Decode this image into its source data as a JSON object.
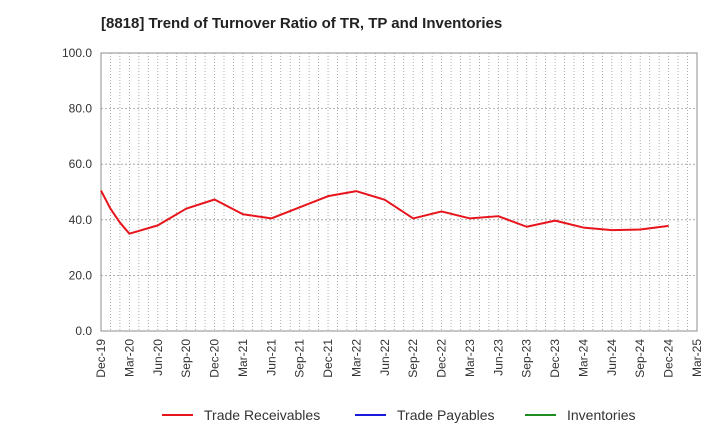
{
  "chart_data": {
    "type": "line",
    "title": "[8818]  Trend of Turnover Ratio of TR, TP and Inventories",
    "xlabel": "",
    "ylabel": "",
    "ylim": [
      0,
      100
    ],
    "yticks": [
      "0.0",
      "20.0",
      "40.0",
      "60.0",
      "80.0",
      "100.0"
    ],
    "xticks": [
      "Dec-19",
      "Mar-20",
      "Jun-20",
      "Sep-20",
      "Dec-20",
      "Mar-21",
      "Jun-21",
      "Sep-21",
      "Dec-21",
      "Mar-22",
      "Jun-22",
      "Sep-22",
      "Dec-22",
      "Mar-23",
      "Jun-23",
      "Sep-23",
      "Dec-23",
      "Mar-24",
      "Jun-24",
      "Sep-24",
      "Dec-24",
      "Mar-25"
    ],
    "grid": true,
    "legend_position": "bottom",
    "series": [
      {
        "name": "Trade Receivables",
        "color": "#e8141c",
        "values": [
          [
            0,
            50.5
          ],
          [
            1,
            44.0
          ],
          [
            2,
            39.0
          ],
          [
            3,
            35.0
          ],
          [
            6,
            38.0
          ],
          [
            9,
            44.0
          ],
          [
            12,
            47.3
          ],
          [
            15,
            42.0
          ],
          [
            18,
            40.5
          ],
          [
            21,
            44.5
          ],
          [
            24,
            48.5
          ],
          [
            27,
            50.3
          ],
          [
            30,
            47.2
          ],
          [
            33,
            40.5
          ],
          [
            36,
            43.0
          ],
          [
            39,
            40.5
          ],
          [
            42,
            41.3
          ],
          [
            45,
            37.5
          ],
          [
            48,
            39.7
          ],
          [
            51,
            37.2
          ],
          [
            54,
            36.3
          ],
          [
            57,
            36.5
          ],
          [
            60,
            37.8
          ]
        ]
      },
      {
        "name": "Trade Payables",
        "color": "#1a1adc",
        "values": []
      },
      {
        "name": "Inventories",
        "color": "#1e8c1e",
        "values": []
      }
    ]
  }
}
